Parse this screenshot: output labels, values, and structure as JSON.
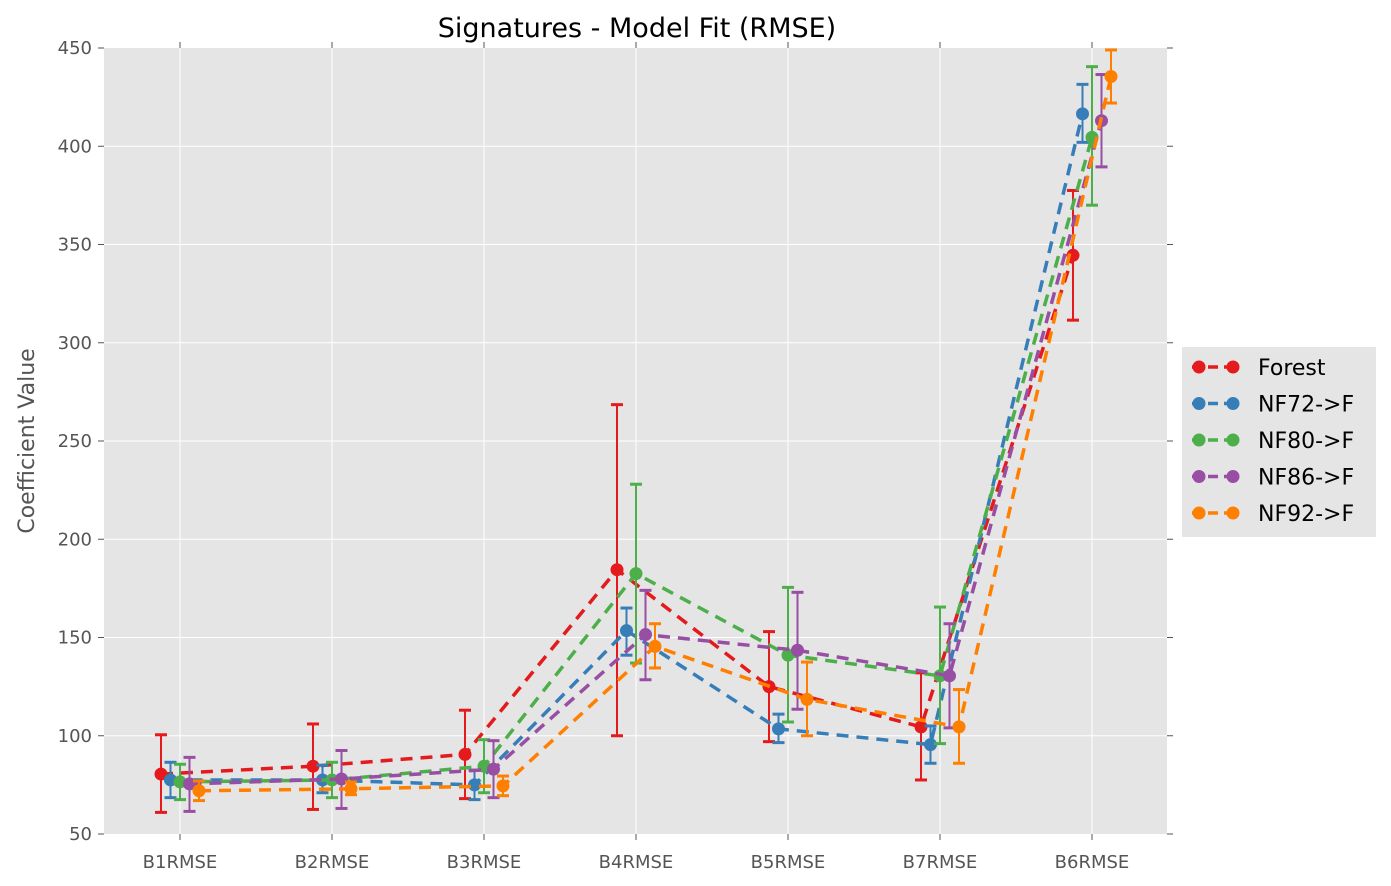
{
  "chart_data": {
    "type": "line",
    "title": "Signatures - Model Fit (RMSE)",
    "xlabel": "",
    "ylabel": "Coefficient Value",
    "categories": [
      "B1RMSE",
      "B2RMSE",
      "B3RMSE",
      "B4RMSE",
      "B5RMSE",
      "B7RMSE",
      "B6RMSE"
    ],
    "ylim": [
      50,
      450
    ],
    "yticks": [
      50,
      100,
      150,
      200,
      250,
      300,
      350,
      400,
      450
    ],
    "grid": true,
    "legend_position": "right",
    "line_style": "dashed",
    "error_bars": true,
    "series": [
      {
        "name": "Forest",
        "color": "#e41a1c",
        "values": [
          80.5,
          84.5,
          90.5,
          184.5,
          125.0,
          104.5,
          344.5
        ],
        "err_low": [
          61,
          62.5,
          68,
          100,
          97,
          77.5,
          311.5
        ],
        "err_high": [
          100.5,
          106,
          113,
          268.5,
          153,
          132,
          377.5
        ]
      },
      {
        "name": "NF72->F",
        "color": "#377eb8",
        "values": [
          77.5,
          77.5,
          75.0,
          153.5,
          103.5,
          95.5,
          416.5
        ],
        "err_low": [
          68.5,
          71,
          67.5,
          141,
          96.5,
          86,
          402
        ],
        "err_high": [
          86.5,
          85,
          82.5,
          165,
          111,
          105,
          431.5
        ]
      },
      {
        "name": "NF80->F",
        "color": "#4daf4a",
        "values": [
          76.5,
          77.5,
          84.5,
          182.5,
          141.0,
          130.5,
          404.5
        ],
        "err_low": [
          67.5,
          68.5,
          71,
          137,
          107,
          96,
          370
        ],
        "err_high": [
          85.5,
          86.5,
          98,
          228,
          175.5,
          165.5,
          440.5
        ]
      },
      {
        "name": "NF86->F",
        "color": "#984ea3",
        "values": [
          75.5,
          78.0,
          83.0,
          151.5,
          143.5,
          130.5,
          413.0
        ],
        "err_low": [
          61.5,
          63,
          68.5,
          128.5,
          113.5,
          104,
          389.5
        ],
        "err_high": [
          89,
          92.5,
          97.5,
          174,
          173,
          157,
          436.5
        ]
      },
      {
        "name": "NF92->F",
        "color": "#ff7f00",
        "values": [
          72.0,
          73.0,
          74.5,
          145.5,
          118.5,
          104.5,
          435.5
        ],
        "err_low": [
          67,
          70,
          69.5,
          134.5,
          100,
          86,
          422
        ],
        "err_high": [
          77,
          76.5,
          79.5,
          157,
          137.5,
          123.5,
          449
        ]
      }
    ]
  }
}
